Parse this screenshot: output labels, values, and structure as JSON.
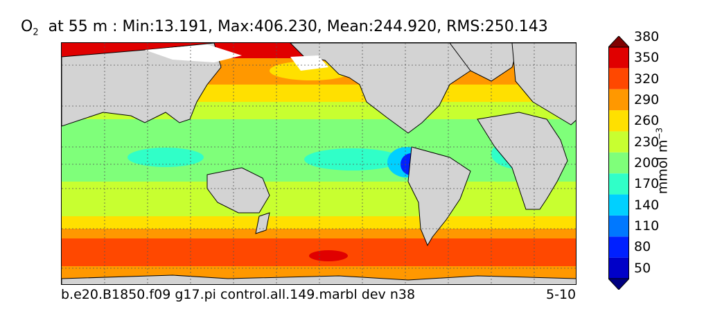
{
  "title": {
    "symbol": "O",
    "subscript": "2",
    "text": "at 55 m : Min:13.191, Max:406.230, Mean:244.920, RMS:250.143"
  },
  "footer": {
    "case_name": "b.e20.B1850.f09 g17.pi control.all.149.marbl dev n38",
    "years": "5-10"
  },
  "colorbar": {
    "unit_main": "mmol m",
    "unit_exp": "−3",
    "levels": [
      "50",
      "80",
      "110",
      "140",
      "170",
      "200",
      "230",
      "260",
      "290",
      "320",
      "350",
      "380"
    ],
    "colors": [
      "#000080",
      "#0000c8",
      "#0020ff",
      "#0078ff",
      "#00d0ff",
      "#30ffc8",
      "#7fff7a",
      "#c8ff30",
      "#ffe000",
      "#ff9800",
      "#ff4800",
      "#e00000",
      "#800000"
    ]
  },
  "map_colors": {
    "land": "#d3d3d3",
    "sea_ice": "#ffffff",
    "grid": "#555555"
  }
}
